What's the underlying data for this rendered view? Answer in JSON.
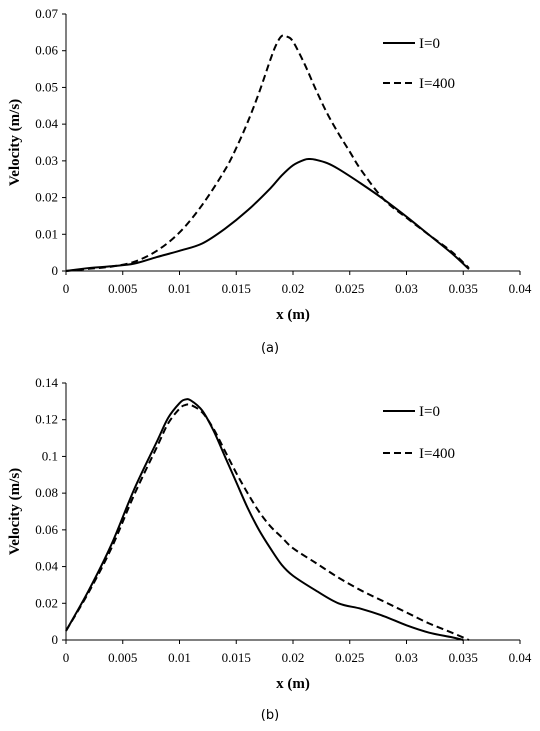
{
  "chart_data": [
    {
      "type": "line",
      "caption": "(a)",
      "xlabel": "x (m)",
      "ylabel": "Velocity (m/s)",
      "xlim": [
        0,
        0.04
      ],
      "ylim": [
        0,
        0.07
      ],
      "xticks": [
        "0",
        "0.005",
        "0.01",
        "0.015",
        "0.02",
        "0.025",
        "0.03",
        "0.035",
        "0.04"
      ],
      "yticks": [
        "0",
        "0.01",
        "0.02",
        "0.03",
        "0.04",
        "0.05",
        "0.06",
        "0.07"
      ],
      "grid": false,
      "legend_position": "top-right",
      "series": [
        {
          "name": "I=0",
          "style": "solid",
          "x": [
            0,
            0.002,
            0.004,
            0.006,
            0.008,
            0.01,
            0.012,
            0.014,
            0.016,
            0.018,
            0.019,
            0.02,
            0.021,
            0.0215,
            0.022,
            0.023,
            0.024,
            0.026,
            0.028,
            0.03,
            0.032,
            0.034,
            0.0355
          ],
          "y": [
            0,
            0.0008,
            0.0013,
            0.002,
            0.0038,
            0.0055,
            0.0075,
            0.0115,
            0.0165,
            0.0225,
            0.026,
            0.0288,
            0.0303,
            0.0305,
            0.0303,
            0.0294,
            0.0278,
            0.0238,
            0.0195,
            0.0148,
            0.0098,
            0.0048,
            0.0005
          ]
        },
        {
          "name": "I=400",
          "style": "dashed",
          "x": [
            0,
            0.002,
            0.004,
            0.006,
            0.008,
            0.01,
            0.012,
            0.014,
            0.015,
            0.016,
            0.017,
            0.018,
            0.0185,
            0.019,
            0.0195,
            0.02,
            0.021,
            0.022,
            0.023,
            0.024,
            0.025,
            0.026,
            0.028,
            0.03,
            0.032,
            0.034,
            0.0355
          ],
          "y": [
            0,
            0.0006,
            0.0012,
            0.0025,
            0.0055,
            0.0105,
            0.018,
            0.0275,
            0.0335,
            0.0405,
            0.0485,
            0.0575,
            0.0615,
            0.064,
            0.0638,
            0.0625,
            0.0565,
            0.0495,
            0.043,
            0.0375,
            0.0325,
            0.0275,
            0.0195,
            0.0145,
            0.0098,
            0.0052,
            0.0008
          ]
        }
      ]
    },
    {
      "type": "line",
      "caption": "(b)",
      "xlabel": "x (m)",
      "ylabel": "Velocity (m/s)",
      "xlim": [
        0,
        0.04
      ],
      "ylim": [
        0,
        0.14
      ],
      "xticks": [
        "0",
        "0.005",
        "0.01",
        "0.015",
        "0.02",
        "0.025",
        "0.03",
        "0.035",
        "0.04"
      ],
      "yticks": [
        "0",
        "0.02",
        "0.04",
        "0.06",
        "0.08",
        "0.1",
        "0.12",
        "0.14"
      ],
      "grid": false,
      "legend_position": "top-right",
      "series": [
        {
          "name": "I=0",
          "style": "solid",
          "x": [
            0,
            0.002,
            0.004,
            0.006,
            0.008,
            0.009,
            0.01,
            0.0105,
            0.011,
            0.012,
            0.013,
            0.014,
            0.015,
            0.016,
            0.017,
            0.018,
            0.019,
            0.02,
            0.022,
            0.024,
            0.026,
            0.028,
            0.03,
            0.032,
            0.034,
            0.035
          ],
          "y": [
            0.005,
            0.027,
            0.052,
            0.082,
            0.108,
            0.121,
            0.129,
            0.131,
            0.1305,
            0.125,
            0.114,
            0.1,
            0.086,
            0.072,
            0.06,
            0.05,
            0.041,
            0.035,
            0.027,
            0.02,
            0.017,
            0.013,
            0.008,
            0.004,
            0.0015,
            0
          ]
        },
        {
          "name": "I=400",
          "style": "dashed",
          "x": [
            0,
            0.002,
            0.004,
            0.006,
            0.008,
            0.009,
            0.01,
            0.0105,
            0.011,
            0.012,
            0.013,
            0.014,
            0.015,
            0.016,
            0.017,
            0.018,
            0.019,
            0.02,
            0.022,
            0.024,
            0.026,
            0.028,
            0.03,
            0.032,
            0.034,
            0.0355
          ],
          "y": [
            0.005,
            0.026,
            0.05,
            0.079,
            0.105,
            0.118,
            0.126,
            0.128,
            0.128,
            0.124,
            0.115,
            0.103,
            0.091,
            0.08,
            0.07,
            0.062,
            0.056,
            0.05,
            0.042,
            0.034,
            0.027,
            0.021,
            0.015,
            0.009,
            0.004,
            0
          ]
        }
      ]
    }
  ]
}
